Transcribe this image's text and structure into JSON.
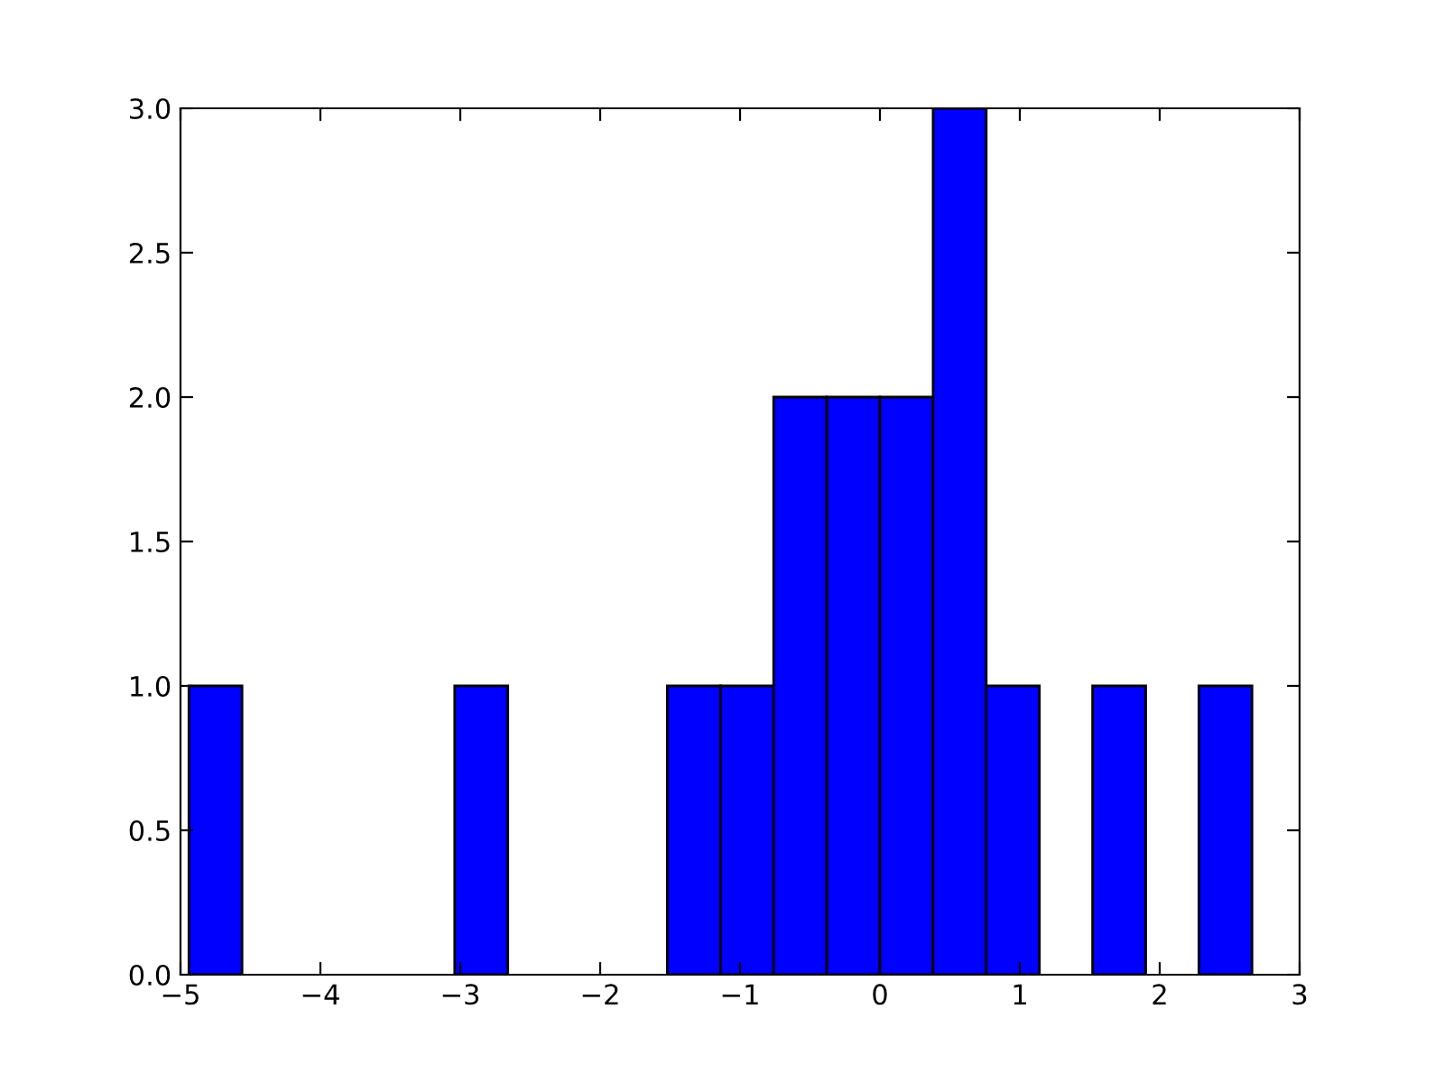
{
  "chart_data": {
    "type": "histogram",
    "color": "#0000ff",
    "bins": [
      -4.94,
      -4.56,
      -4.18,
      -3.8,
      -3.42,
      -3.04,
      -2.66,
      -2.28,
      -1.9,
      -1.52,
      -1.14,
      -0.76,
      -0.38,
      0.0,
      0.38,
      0.76,
      1.14,
      1.52,
      1.9,
      2.28,
      2.66
    ],
    "values": [
      1,
      0,
      0,
      0,
      0,
      1,
      0,
      0,
      0,
      1,
      1,
      2,
      2,
      2,
      3,
      1,
      0,
      1,
      0,
      1
    ],
    "xlim": [
      -5,
      3
    ],
    "xticks": [
      {
        "value": -5,
        "label": "−5"
      },
      {
        "value": -4,
        "label": "−4"
      },
      {
        "value": -3,
        "label": "−3"
      },
      {
        "value": -2,
        "label": "−2"
      },
      {
        "value": -1,
        "label": "−1"
      },
      0,
      1,
      2,
      3
    ],
    "ylim": [
      0,
      3
    ],
    "yticks": [
      {
        "value": 0,
        "label": "0.0"
      },
      {
        "value": 0.5,
        "label": "0.5"
      },
      {
        "value": 1,
        "label": "1.0"
      },
      {
        "value": 1.5,
        "label": "1.5"
      },
      {
        "value": 2,
        "label": "2.0"
      },
      {
        "value": 2.5,
        "label": "2.5"
      },
      {
        "value": 3,
        "label": "3.0"
      }
    ],
    "grid": false
  }
}
